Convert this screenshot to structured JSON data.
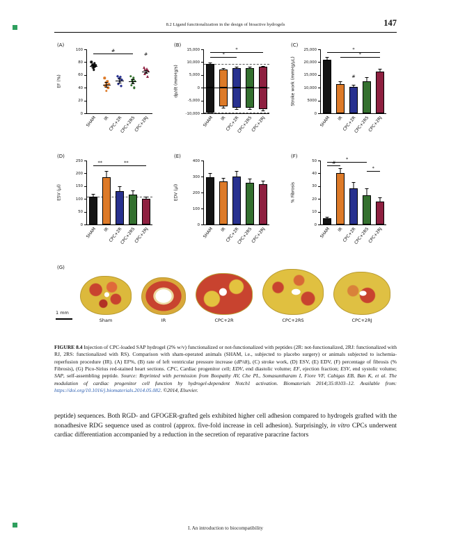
{
  "page": {
    "header": "8.2 Ligand functionalization in the design of bioactive hydrogels",
    "page_number": "147",
    "footer": "I.  An introduction to biocompatibility"
  },
  "figure": {
    "panel_letters": [
      "(A)",
      "(B)",
      "(C)",
      "(D)",
      "(E)",
      "(F)",
      "(G)"
    ],
    "groups": [
      "SHAM",
      "IR",
      "CPC+2R",
      "CPC+2RS",
      "CPC+2RJ"
    ],
    "group_colors": [
      "#141414",
      "#dd7a28",
      "#28318f",
      "#34702f",
      "#8e2040"
    ],
    "panelG": {
      "labels": [
        "Sham",
        "IR",
        "CPC+2R",
        "CPC+2RS",
        "CPC+2RJ"
      ],
      "scale": "1 mm"
    }
  },
  "chart_data": [
    {
      "id": "A",
      "type": "scatter",
      "title": "",
      "ylabel": "EF (%)",
      "ylim": [
        0,
        100
      ],
      "yticks": [
        0,
        20,
        40,
        60,
        80,
        100
      ],
      "categories": [
        "SHAM",
        "IR",
        "CPC+2R",
        "CPC+2RS",
        "CPC+2RJ"
      ],
      "markers": [
        "circle",
        "circle",
        "diamond",
        "circle",
        "triangle"
      ],
      "points": [
        [
          80,
          78,
          76,
          75,
          75,
          74,
          73,
          71,
          68
        ],
        [
          55,
          50,
          48,
          46,
          45,
          43,
          40,
          35
        ],
        [
          58,
          56,
          54,
          52,
          50,
          46,
          42
        ],
        [
          58,
          55,
          52,
          50,
          48,
          44,
          40
        ],
        [
          72,
          70,
          68,
          66,
          64,
          62,
          58
        ]
      ],
      "means": [
        74,
        45,
        51,
        50,
        65
      ],
      "sems": [
        2,
        4,
        3,
        3,
        2
      ],
      "annotations": [
        {
          "x1": 0,
          "x2": 3,
          "y": 93,
          "label": "#"
        },
        {
          "x1": 4,
          "x2": 4,
          "y": 88,
          "label": "#"
        }
      ]
    },
    {
      "id": "B",
      "type": "bar",
      "title": "",
      "ylabel": "dp/dt (mmHg/s)",
      "ylim": [
        -10000,
        15000
      ],
      "yticks": [
        15000,
        10000,
        5000,
        0,
        -5000,
        -10000
      ],
      "ytick_labels": [
        "15,000",
        "10,000",
        "5,000",
        "0",
        "-5,000",
        "-10,000"
      ],
      "categories": [
        "SHAM",
        "IR",
        "CPC+2R",
        "CPC+2RS",
        "CPC+2RJ"
      ],
      "values": [
        9300,
        7200,
        7600,
        7700,
        8100
      ],
      "errors": [
        600,
        500,
        500,
        500,
        500
      ],
      "values_neg": [
        -9600,
        -7400,
        -7800,
        -7900,
        -8300
      ],
      "errors_neg": [
        500,
        500,
        500,
        500,
        500
      ],
      "dashed": [
        9300,
        -9600
      ],
      "annotations": [
        {
          "x1": 0,
          "x2": 2,
          "y": 12000,
          "label": "*"
        },
        {
          "x1": 0,
          "x2": 4,
          "y": 13800,
          "label": "*"
        }
      ]
    },
    {
      "id": "C",
      "type": "bar",
      "title": "",
      "ylabel": "Stroke work (mmHg/µL)",
      "ylim": [
        0,
        25000
      ],
      "yticks": [
        0,
        5000,
        10000,
        15000,
        20000,
        25000
      ],
      "ytick_labels": [
        "0",
        "5000",
        "10,000",
        "15,000",
        "20,000",
        "25,000"
      ],
      "categories": [
        "SHAM",
        "IR",
        "CPC+2R",
        "CPC+2RS",
        "CPC+2RJ"
      ],
      "values": [
        21000,
        11500,
        10400,
        12600,
        16300
      ],
      "errors": [
        900,
        900,
        800,
        1500,
        1200
      ],
      "annotations": [
        {
          "x1": 0,
          "x2": 4,
          "y": 23800,
          "label": "*"
        },
        {
          "x1": 1,
          "x2": 4,
          "y": 22000,
          "label": "*"
        },
        {
          "x1": 2,
          "x2": 2,
          "y": 13200,
          "label": "#"
        }
      ]
    },
    {
      "id": "D",
      "type": "bar",
      "title": "",
      "ylabel": "ESV (µl)",
      "ylim": [
        0,
        250
      ],
      "yticks": [
        0,
        50,
        100,
        150,
        200,
        250
      ],
      "categories": [
        "SHAM",
        "IR",
        "CPC+2R",
        "CPC+2RS",
        "CPC+2RJ"
      ],
      "values": [
        110,
        185,
        130,
        118,
        100
      ],
      "errors": [
        10,
        25,
        20,
        15,
        8
      ],
      "dashed": [
        110
      ],
      "annotations": [
        {
          "x1": 0,
          "x2": 1,
          "y": 232,
          "label": "**"
        },
        {
          "x1": 1,
          "x2": 4,
          "y": 232,
          "label": "**"
        }
      ]
    },
    {
      "id": "E",
      "type": "bar",
      "title": "",
      "ylabel": "EDV (µl)",
      "ylim": [
        0,
        400
      ],
      "yticks": [
        0,
        100,
        200,
        300,
        400
      ],
      "categories": [
        "SHAM",
        "IR",
        "CPC+2R",
        "CPC+2RS",
        "CPC+2RJ"
      ],
      "values": [
        295,
        268,
        298,
        262,
        252
      ],
      "errors": [
        25,
        25,
        35,
        25,
        20
      ],
      "annotations": []
    },
    {
      "id": "F",
      "type": "bar",
      "title": "",
      "ylabel": "% Fibrosis",
      "ylim": [
        0,
        50
      ],
      "yticks": [
        0,
        10,
        20,
        30,
        40,
        50
      ],
      "categories": [
        "SHAM",
        "IR",
        "CPC+2R",
        "CPC+2RS",
        "CPC+2RJ"
      ],
      "values": [
        5,
        40,
        28,
        23,
        18
      ],
      "errors": [
        1,
        4,
        5,
        5,
        3
      ],
      "annotations": [
        {
          "x1": 0,
          "x2": 1,
          "y": 46,
          "label": "#"
        },
        {
          "x1": 0,
          "x2": 3,
          "y": 49,
          "label": "*"
        },
        {
          "x1": 3,
          "x2": 4,
          "y": 42,
          "label": "*"
        }
      ]
    }
  ],
  "caption": {
    "segments": [
      {
        "t": "FIGURE 8.4  ",
        "s": "b"
      },
      {
        "t": "Injection of CPC-loaded SAP hydrogel (2% w/v) functionalized or not-functionalized with peptides (2R: not-functionalized, 2RJ: functionalized with RJ, 2RS: functionalized with RS). Comparison with sham-operated animals (SHAM, i.e., subjected to placebo surgery) or animals subjected to ischemia-reperfusion procedure (IR). (A) EF%, (B) rate of left ventricular pressure increase ("
      },
      {
        "t": "dP/dt",
        "s": "i"
      },
      {
        "t": "), (C) stroke work, (D) ESV, (E) EDV, (F) percentage of fibrosis (% Fibrosis), (G) Pico-Sirius red-stained heart sections. "
      },
      {
        "t": "CPC",
        "s": "i"
      },
      {
        "t": ", Cardiac progenitor cell; "
      },
      {
        "t": "EDV",
        "s": "i"
      },
      {
        "t": ", end diastolic volume; "
      },
      {
        "t": "EF",
        "s": "i"
      },
      {
        "t": ", ejection fraction; "
      },
      {
        "t": "ESV",
        "s": "i"
      },
      {
        "t": ", end systolic volume; "
      },
      {
        "t": "SAP",
        "s": "i"
      },
      {
        "t": ", self-assembling peptide. "
      },
      {
        "t": "Source: Reprinted with permission from Boopathy AV, Che PL, Somasuntharam I, Fiore VF, Cabigas EB, Ban K, et al. The modulation of cardiac progenitor cell function by hydrogel-dependent Notch1 activation. Biomaterials 2014;35:8103–12. Available from: ",
        "s": "i"
      },
      {
        "t": "https://doi.org/10.1016/j.biomaterials.2014.05.082",
        "s": "i link"
      },
      {
        "t": ". ©2014, Elsevier.",
        "s": "i"
      }
    ]
  },
  "body": {
    "segments": [
      {
        "t": "peptide) sequences. Both RGD- and GFOGER-grafted gels exhibited higher cell adhesion compared to hydrogels grafted with the nonadhesive RDG sequence used as control (approx. five-fold increase in cell adhesion). Surprisingly, "
      },
      {
        "t": "in vitro",
        "s": "i"
      },
      {
        "t": " CPCs underwent cardiac differentiation accompanied by a reduction in the secretion of reparative paracrine factors"
      }
    ]
  }
}
